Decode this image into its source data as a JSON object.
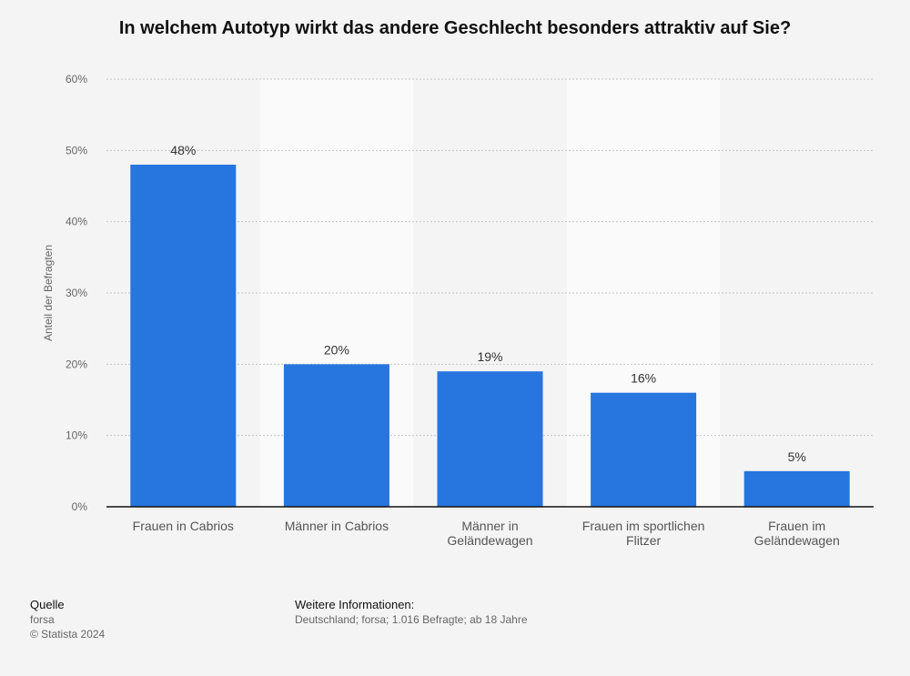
{
  "chart_data": {
    "type": "bar",
    "title": "In welchem Autotyp wirkt das andere Geschlecht besonders attraktiv auf Sie?",
    "ylabel": "Anteil der Befragten",
    "xlabel": "",
    "categories": [
      "Frauen in Cabrios",
      "Männer in Cabrios",
      "Männer in Geländewagen",
      "Frauen im sportlichen Flitzer",
      "Frauen im Geländewagen"
    ],
    "category_lines": [
      [
        "Frauen in Cabrios"
      ],
      [
        "Männer in Cabrios"
      ],
      [
        "Männer in",
        "Geländewagen"
      ],
      [
        "Frauen im sportlichen",
        "Flitzer"
      ],
      [
        "Frauen im",
        "Geländewagen"
      ]
    ],
    "values": [
      48,
      20,
      19,
      16,
      5
    ],
    "value_labels": [
      "48%",
      "20%",
      "19%",
      "16%",
      "5%"
    ],
    "ylim": [
      0,
      60
    ],
    "yticks": [
      0,
      10,
      20,
      30,
      40,
      50,
      60
    ],
    "ytick_labels": [
      "0%",
      "10%",
      "20%",
      "30%",
      "40%",
      "50%",
      "60%"
    ],
    "grid": true,
    "bar_color": "#2775de"
  },
  "footer": {
    "source_heading": "Quelle",
    "source_name": "forsa",
    "copyright": "© Statista 2024",
    "info_heading": "Weitere Informationen:",
    "info_text": "Deutschland; forsa; 1.016 Befragte; ab 18 Jahre"
  }
}
